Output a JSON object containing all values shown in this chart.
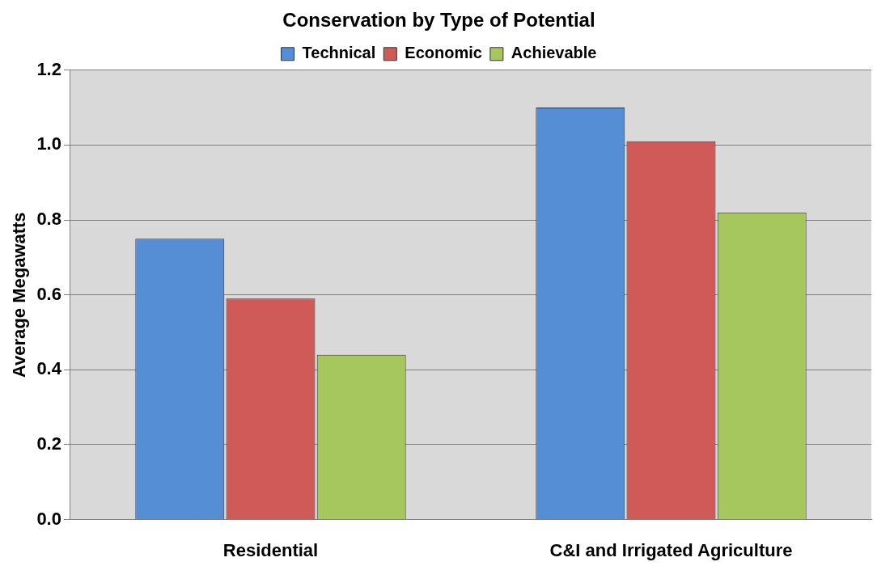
{
  "chart_data": {
    "type": "bar",
    "title": "Conservation by Type of Potential",
    "ylabel": "Average Megawatts",
    "categories": [
      "Residential",
      "C&I and Irrigated Agriculture"
    ],
    "series": [
      {
        "name": "Technical",
        "color": "#558ed5",
        "values": [
          0.75,
          1.1
        ]
      },
      {
        "name": "Economic",
        "color": "#d05a57",
        "values": [
          0.59,
          1.01
        ]
      },
      {
        "name": "Achievable",
        "color": "#a6c65e",
        "values": [
          0.44,
          0.82
        ]
      }
    ],
    "ylim": [
      0,
      1.2
    ],
    "yticks": [
      {
        "value": 0,
        "label": "0.0"
      },
      {
        "value": 0.2,
        "label": "0.2"
      },
      {
        "value": 0.4,
        "label": "0.4"
      },
      {
        "value": 0.6,
        "label": "0.6"
      },
      {
        "value": 0.8,
        "label": "0.8"
      },
      {
        "value": 1,
        "label": "1.0"
      },
      {
        "value": 1.2,
        "label": "1.2"
      }
    ],
    "grid": "y",
    "legend": "top"
  }
}
